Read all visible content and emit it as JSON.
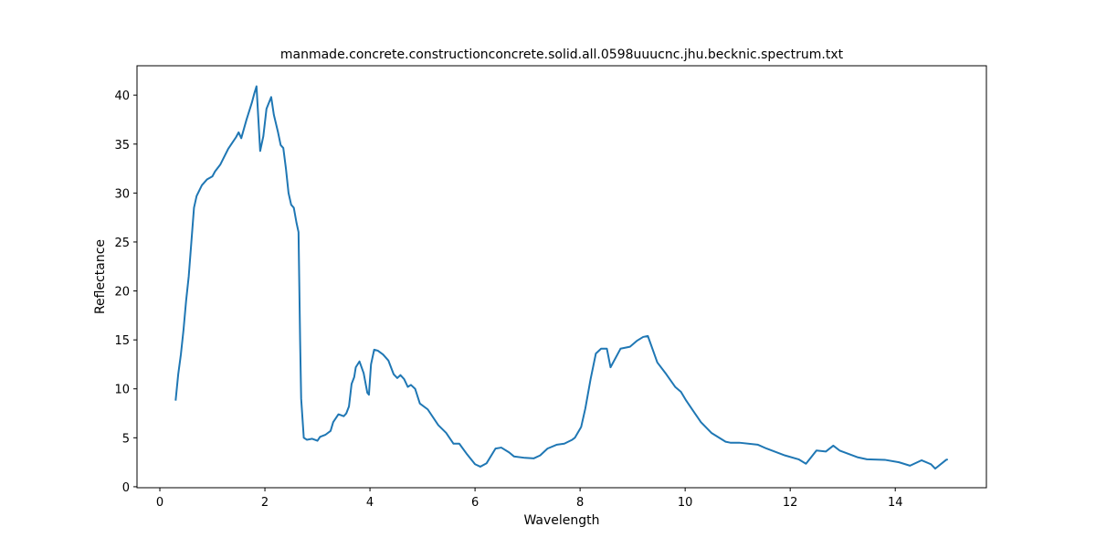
{
  "chart_data": {
    "type": "line",
    "title": "manmade.concrete.constructionconcrete.solid.all.0598uuucnc.jhu.becknic.spectrum.txt",
    "x_label": "Wavelength",
    "y_label": "Reflectance",
    "xlim": [
      -0.435,
      15.735
    ],
    "ylim": [
      -0.1,
      43.0
    ],
    "xticks": [
      0,
      2,
      4,
      6,
      8,
      10,
      12,
      14
    ],
    "yticks": [
      0,
      5,
      10,
      15,
      20,
      25,
      30,
      35,
      40
    ],
    "series": [
      {
        "color": "#1f77b4",
        "x": [
          0.3,
          0.35,
          0.4,
          0.45,
          0.5,
          0.55,
          0.6,
          0.65,
          0.7,
          0.8,
          0.9,
          1.0,
          1.05,
          1.15,
          1.3,
          1.45,
          1.5,
          1.55,
          1.65,
          1.75,
          1.8,
          1.84,
          1.91,
          1.97,
          2.03,
          2.12,
          2.17,
          2.25,
          2.3,
          2.35,
          2.4,
          2.45,
          2.5,
          2.55,
          2.6,
          2.64,
          2.67,
          2.69,
          2.74,
          2.8,
          2.9,
          3.0,
          3.05,
          3.15,
          3.25,
          3.3,
          3.4,
          3.5,
          3.55,
          3.6,
          3.65,
          3.7,
          3.73,
          3.8,
          3.88,
          3.95,
          3.98,
          4.02,
          4.08,
          4.15,
          4.25,
          4.35,
          4.45,
          4.52,
          4.58,
          4.65,
          4.72,
          4.78,
          4.86,
          4.95,
          5.1,
          5.3,
          5.45,
          5.59,
          5.7,
          5.85,
          6.0,
          6.1,
          6.22,
          6.39,
          6.5,
          6.65,
          6.74,
          6.95,
          7.12,
          7.24,
          7.38,
          7.56,
          7.7,
          7.85,
          7.9,
          8.02,
          8.1,
          8.2,
          8.3,
          8.4,
          8.51,
          8.58,
          8.77,
          8.95,
          9.08,
          9.2,
          9.29,
          9.47,
          9.64,
          9.81,
          9.92,
          10.02,
          10.16,
          10.3,
          10.5,
          10.77,
          10.86,
          11.03,
          11.38,
          11.55,
          11.9,
          12.16,
          12.3,
          12.5,
          12.68,
          12.82,
          12.94,
          13.29,
          13.46,
          13.8,
          14.07,
          14.28,
          14.5,
          14.68,
          14.76,
          14.97,
          15.0
        ],
        "values": [
          8.8,
          11.5,
          13.5,
          16,
          19,
          21.5,
          25,
          28.5,
          29.7,
          30.8,
          31.4,
          31.7,
          32.2,
          32.9,
          34.5,
          35.7,
          36.2,
          35.6,
          37.5,
          39.2,
          40.2,
          40.9,
          34.3,
          35.8,
          38.6,
          39.8,
          38.0,
          36.2,
          34.9,
          34.6,
          32.5,
          30,
          28.8,
          28.5,
          27,
          26,
          15,
          9,
          5,
          4.8,
          4.9,
          4.7,
          5.1,
          5.3,
          5.7,
          6.6,
          7.4,
          7.2,
          7.5,
          8.2,
          10.5,
          11.2,
          12.2,
          12.8,
          11.6,
          9.6,
          9.4,
          12.5,
          14,
          13.9,
          13.5,
          12.9,
          11.5,
          11.1,
          11.4,
          11,
          10.2,
          10.4,
          10,
          8.5,
          7.9,
          6.3,
          5.5,
          4.4,
          4.4,
          3.3,
          2.3,
          2.05,
          2.4,
          3.9,
          4.0,
          3.5,
          3.1,
          2.95,
          2.9,
          3.2,
          3.9,
          4.3,
          4.4,
          4.8,
          5.0,
          6.1,
          8.0,
          11,
          13.6,
          14.1,
          14.1,
          12.2,
          14.1,
          14.3,
          14.9,
          15.3,
          15.4,
          12.7,
          11.5,
          10.2,
          9.7,
          8.8,
          7.7,
          6.6,
          5.5,
          4.6,
          4.5,
          4.5,
          4.3,
          3.9,
          3.2,
          2.8,
          2.35,
          3.7,
          3.6,
          4.2,
          3.7,
          3.0,
          2.8,
          2.75,
          2.5,
          2.15,
          2.7,
          2.3,
          1.85,
          2.75,
          2.8
        ]
      }
    ]
  }
}
